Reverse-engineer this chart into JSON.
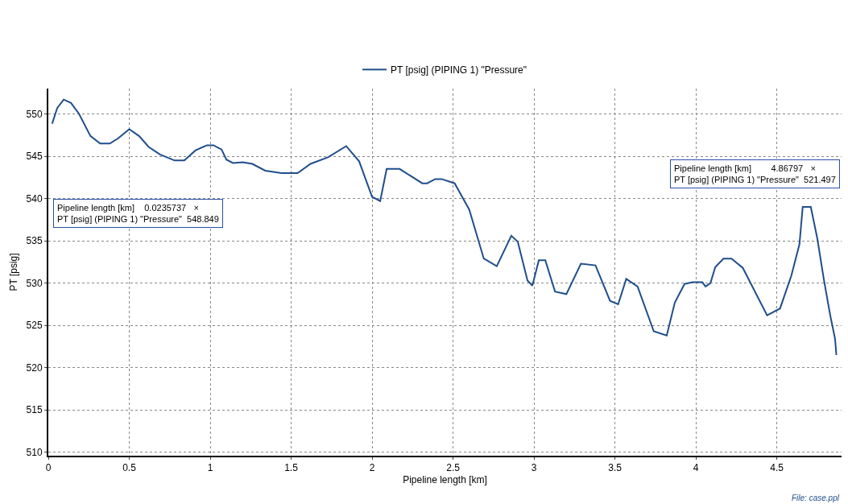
{
  "chart_data": {
    "type": "line",
    "xlabel": "Pipeline length [km]",
    "ylabel": "PT [psig]",
    "x": [
      0.0235737,
      0.055,
      0.095,
      0.14,
      0.19,
      0.26,
      0.32,
      0.38,
      0.43,
      0.5,
      0.56,
      0.62,
      0.69,
      0.78,
      0.84,
      0.91,
      0.98,
      1.02,
      1.07,
      1.1,
      1.14,
      1.2,
      1.26,
      1.34,
      1.44,
      1.54,
      1.62,
      1.73,
      1.84,
      1.92,
      2.0,
      2.05,
      2.09,
      2.14,
      2.17,
      2.31,
      2.34,
      2.39,
      2.43,
      2.51,
      2.6,
      2.69,
      2.77,
      2.86,
      2.9,
      2.96,
      2.99,
      3.03,
      3.07,
      3.13,
      3.2,
      3.29,
      3.38,
      3.47,
      3.52,
      3.57,
      3.64,
      3.74,
      3.82,
      3.87,
      3.93,
      3.98,
      4.04,
      4.06,
      4.09,
      4.12,
      4.17,
      4.22,
      4.29,
      4.44,
      4.52,
      4.59,
      4.64,
      4.66,
      4.71,
      4.75,
      4.79,
      4.83,
      4.86,
      4.86797
    ],
    "series": [
      {
        "name": "PT [psig] (PIPING 1) \"Pressure\"",
        "color": "#1f4e8c",
        "values": [
          548.849,
          550.7,
          551.7,
          551.3,
          550.0,
          547.4,
          546.5,
          546.5,
          547.1,
          548.2,
          547.4,
          546.1,
          545.2,
          544.5,
          544.5,
          545.7,
          546.3,
          546.3,
          545.8,
          544.6,
          544.2,
          544.3,
          544.1,
          543.3,
          543.0,
          543.0,
          544.1,
          544.9,
          546.2,
          544.4,
          540.2,
          539.7,
          543.5,
          543.5,
          543.5,
          541.8,
          541.8,
          542.3,
          542.3,
          541.8,
          538.7,
          532.9,
          532.0,
          535.6,
          534.9,
          530.3,
          529.7,
          532.7,
          532.7,
          529.0,
          528.7,
          532.3,
          532.1,
          527.9,
          527.5,
          530.5,
          529.6,
          524.3,
          523.8,
          527.7,
          529.9,
          530.1,
          530.1,
          529.6,
          530.0,
          531.9,
          532.9,
          532.9,
          531.8,
          526.2,
          527.0,
          530.9,
          534.6,
          539.0,
          539.0,
          535.3,
          530.5,
          526.2,
          523.4,
          521.497
        ]
      }
    ],
    "xlim": [
      0,
      4.9
    ],
    "ylim": [
      509.6,
      553
    ],
    "xticks": [
      0,
      0.5,
      1,
      1.5,
      2,
      2.5,
      3,
      3.5,
      4,
      4.5
    ],
    "yticks": [
      510,
      515,
      520,
      525,
      530,
      535,
      540,
      545,
      550
    ],
    "grid": true,
    "legend": "top",
    "marker": "none",
    "line_style": "solid",
    "annotations": [
      "Pipeline length [km]    0.0235737   ×\nPT [psig] (PIPING 1) \"Pressure\"  548.849",
      "Pipeline length [km]        4.86797   ×\nPT [psig] (PIPING 1) \"Pressure\"  521.497",
      "File: case.ppl"
    ]
  }
}
